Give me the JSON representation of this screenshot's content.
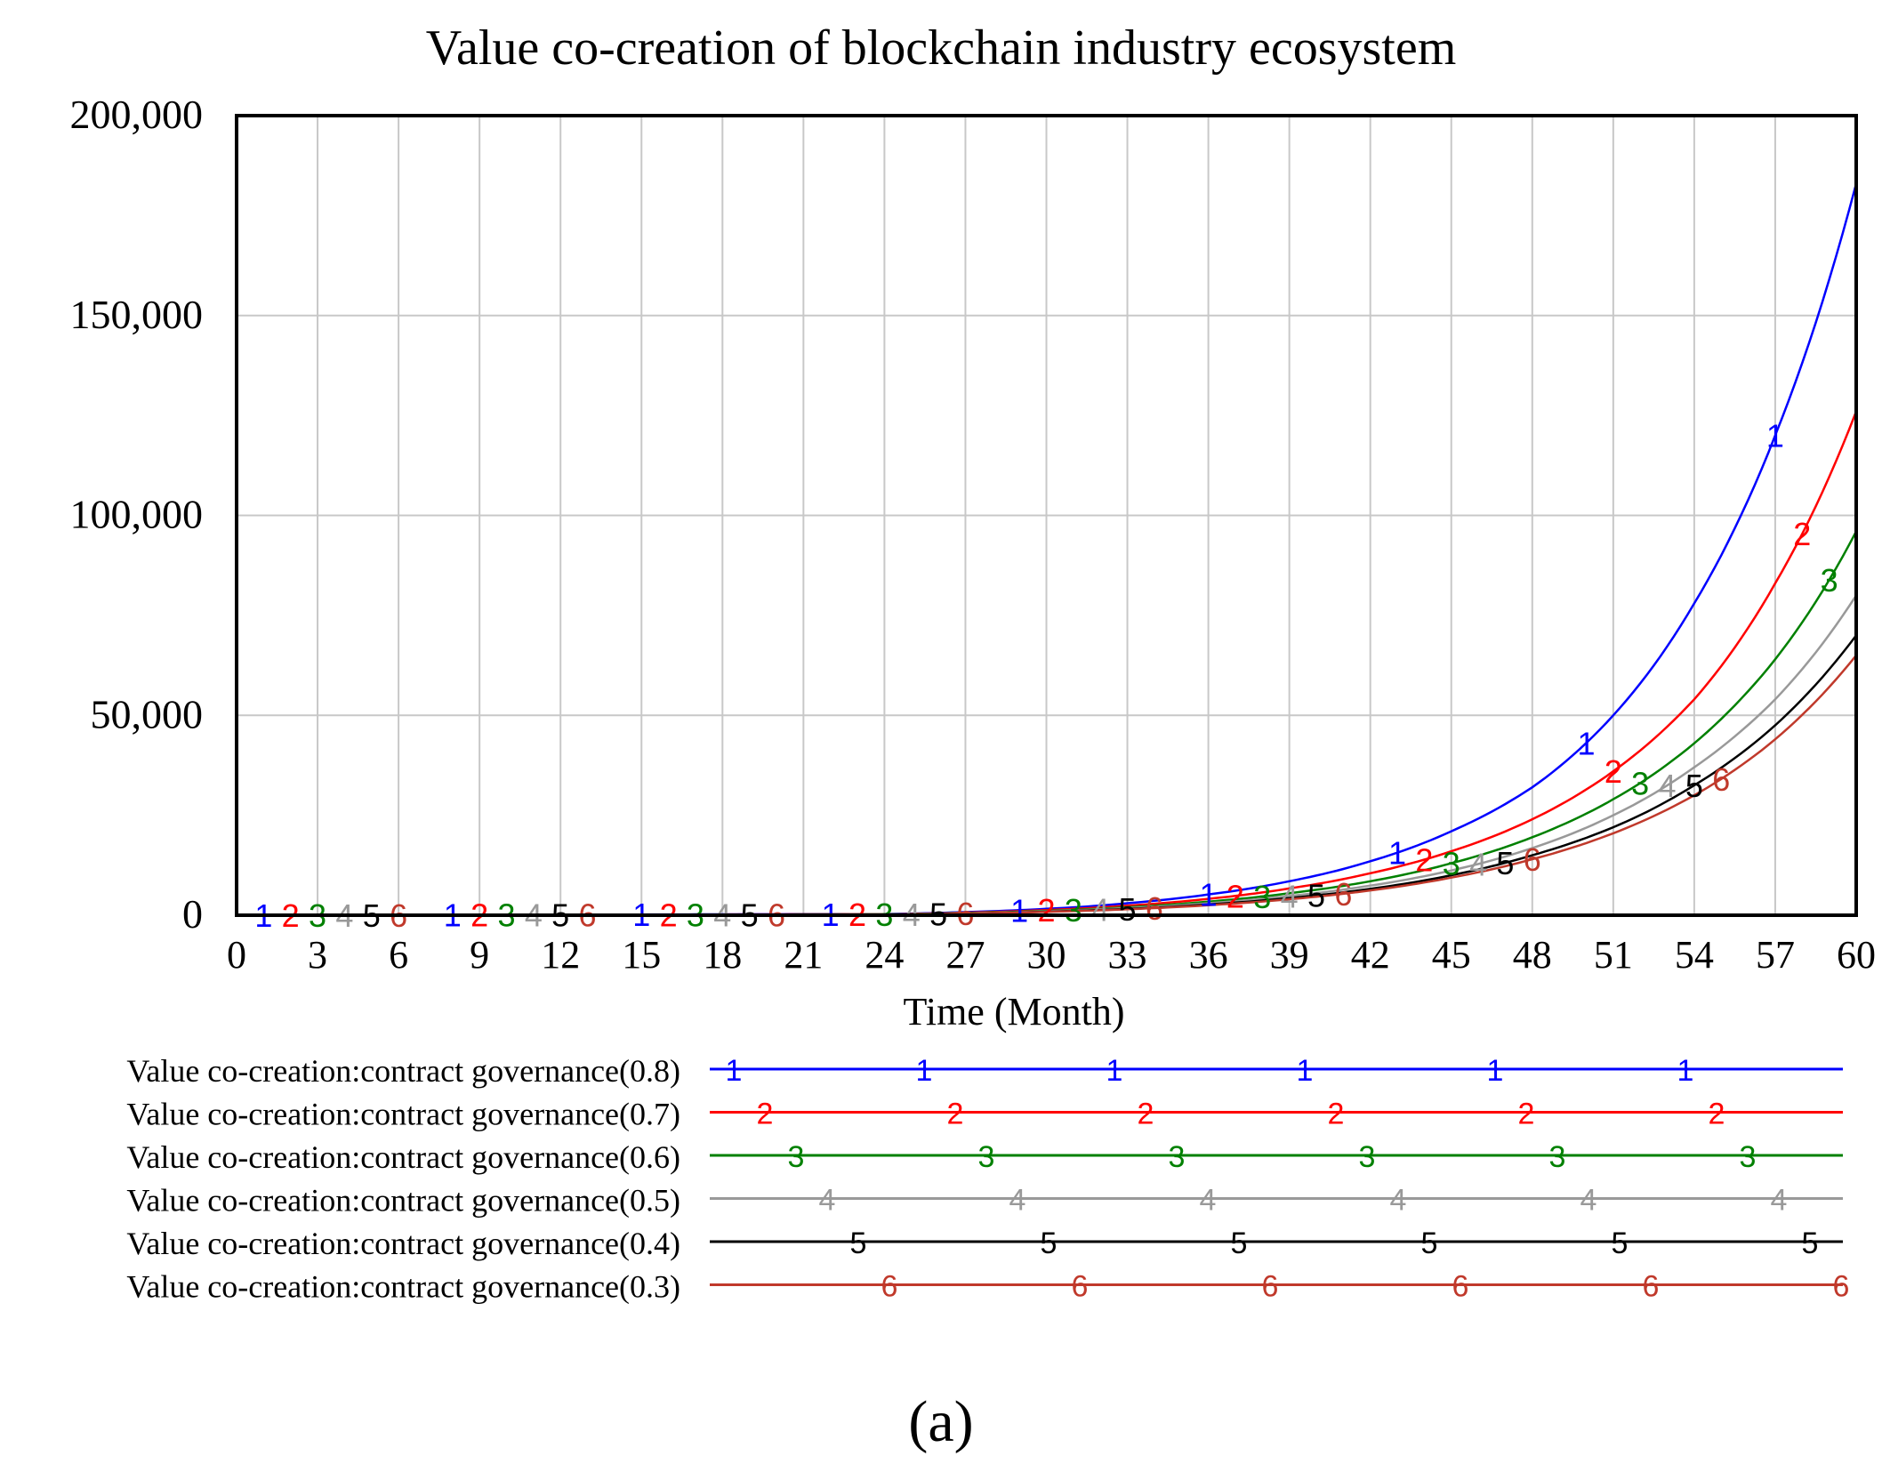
{
  "chart_data": {
    "type": "line",
    "title": "Value co-creation of blockchain industry ecosystem",
    "xlabel": "Time (Month)",
    "ylabel": "",
    "xlim": [
      0,
      60
    ],
    "ylim": [
      0,
      200000
    ],
    "x_ticks": [
      0,
      3,
      6,
      9,
      12,
      15,
      18,
      21,
      24,
      27,
      30,
      33,
      36,
      39,
      42,
      45,
      48,
      51,
      54,
      57,
      60
    ],
    "y_ticks": [
      0,
      50000,
      100000,
      150000,
      200000
    ],
    "y_tick_labels": [
      "0",
      "50,000",
      "100,000",
      "150,000",
      "200,000"
    ],
    "grid": true,
    "legend_position": "bottom",
    "x": [
      0,
      24,
      27,
      30,
      33,
      36,
      39,
      42,
      45,
      48,
      51,
      54,
      57,
      60
    ],
    "series": [
      {
        "name": "Value co-creation:contract governance(0.8)",
        "marker": "1",
        "color": "#0000ff",
        "values": [
          0,
          300,
          800,
          1600,
          3000,
          5200,
          8500,
          13500,
          21000,
          32000,
          50000,
          78000,
          120000,
          183000
        ]
      },
      {
        "name": "Value co-creation:contract governance(0.7)",
        "marker": "2",
        "color": "#ff0000",
        "values": [
          0,
          250,
          650,
          1300,
          2400,
          4100,
          6700,
          10500,
          16000,
          24000,
          36000,
          54000,
          83000,
          126000
        ]
      },
      {
        "name": "Value co-creation:contract governance(0.6)",
        "marker": "3",
        "color": "#008000",
        "values": [
          0,
          220,
          560,
          1100,
          2000,
          3400,
          5500,
          8500,
          13000,
          19500,
          29000,
          43000,
          64000,
          96000
        ]
      },
      {
        "name": "Value co-creation:contract governance(0.5)",
        "marker": "4",
        "color": "#999999",
        "values": [
          0,
          200,
          500,
          1000,
          1800,
          3000,
          4800,
          7400,
          11200,
          16800,
          25000,
          37000,
          54000,
          80000
        ]
      },
      {
        "name": "Value co-creation:contract governance(0.4)",
        "marker": "5",
        "color": "#000000",
        "values": [
          0,
          180,
          460,
          900,
          1600,
          2700,
          4300,
          6600,
          10000,
          15000,
          22000,
          32500,
          47500,
          70000
        ]
      },
      {
        "name": "Value co-creation:contract governance(0.3)",
        "marker": "6",
        "color": "#c0392b",
        "values": [
          0,
          170,
          430,
          850,
          1500,
          2500,
          4000,
          6200,
          9400,
          14000,
          20500,
          30000,
          44000,
          65000
        ]
      }
    ]
  },
  "caption": "(a)"
}
